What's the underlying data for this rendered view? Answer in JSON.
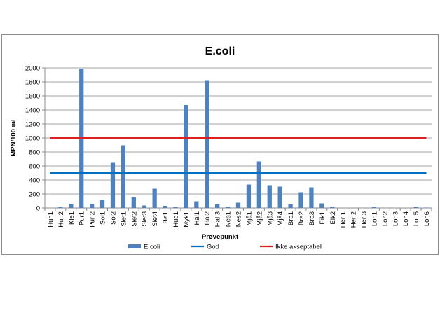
{
  "chart_data": {
    "type": "bar",
    "title": "E.coli",
    "xlabel": "Prøvepunkt",
    "ylabel": "MPN/100 ml",
    "ylim": [
      0,
      2000
    ],
    "yticks": [
      0,
      200,
      400,
      600,
      800,
      1000,
      1200,
      1400,
      1600,
      1800,
      2000
    ],
    "grid": true,
    "legend_position": "bottom",
    "categories": [
      "Hun1",
      "Hun2",
      "Kle1",
      "Pur1",
      "Pur 2",
      "Sol1",
      "Sol2",
      "Slet1",
      "Slet2",
      "Slet3",
      "Slet4",
      "Bø1",
      "Hug1",
      "Myk1",
      "Hal1",
      "Hal2",
      "Hal 3",
      "Nes1",
      "Nes2",
      "Mjå1",
      "Mjå2",
      "Mjå3",
      "Mjå4",
      "Bra1",
      "Bra2",
      "Bra3",
      "Eik1",
      "Eik2",
      "Her 1",
      "Her 2",
      "Her 3",
      "Lon1",
      "Lon2",
      "Lon3",
      "Lon4",
      "Lon5",
      "Lon6"
    ],
    "series": [
      {
        "name": "E.coli",
        "kind": "bar",
        "color": "#4f81bd",
        "values": [
          0,
          20,
          60,
          1990,
          55,
          115,
          645,
          895,
          155,
          35,
          275,
          30,
          10,
          1470,
          95,
          1815,
          50,
          20,
          75,
          335,
          665,
          325,
          305,
          50,
          225,
          295,
          65,
          15,
          0,
          0,
          0,
          15,
          0,
          0,
          0,
          15,
          5
        ]
      },
      {
        "name": "God",
        "kind": "line",
        "color": "#0070c0",
        "value": 500
      },
      {
        "name": "Ikke akseptabel",
        "kind": "line",
        "color": "#e02020",
        "value": 1000
      }
    ]
  }
}
